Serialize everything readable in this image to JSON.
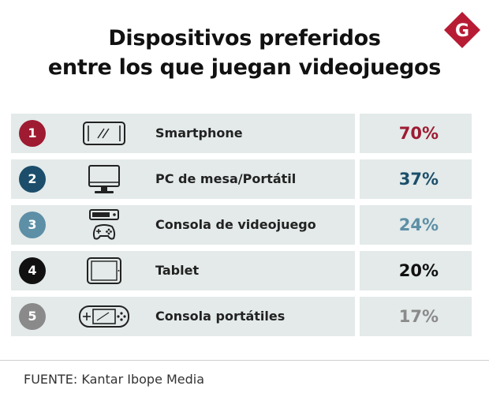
{
  "title_line1": "Dispositivos preferidos",
  "title_line2": "entre los que juegan videojuegos",
  "logo_letter": "G",
  "source": "FUENTE: Kantar Ibope Media",
  "colors": {
    "brand": "#b71c34",
    "row_bg": "#e3eae9"
  },
  "chart_data": {
    "type": "table",
    "title": "Dispositivos preferidos entre los que juegan videojuegos",
    "unit": "%",
    "rows": [
      {
        "rank": "1",
        "device": "Smartphone",
        "percent": 70,
        "value_label": "70%",
        "icon": "smartphone-icon",
        "color": "#9e1b32"
      },
      {
        "rank": "2",
        "device": "PC de mesa/Portátil",
        "percent": 37,
        "value_label": "37%",
        "icon": "monitor-icon",
        "color": "#1c4e6b"
      },
      {
        "rank": "3",
        "device": "Consola de videojuego",
        "percent": 24,
        "value_label": "24%",
        "icon": "game-console-icon",
        "color": "#5d8fa6"
      },
      {
        "rank": "4",
        "device": "Tablet",
        "percent": 20,
        "value_label": "20%",
        "icon": "tablet-icon",
        "color": "#111111"
      },
      {
        "rank": "5",
        "device": "Consola portátiles",
        "percent": 17,
        "value_label": "17%",
        "icon": "handheld-console-icon",
        "color": "#8a8a8a"
      }
    ]
  }
}
